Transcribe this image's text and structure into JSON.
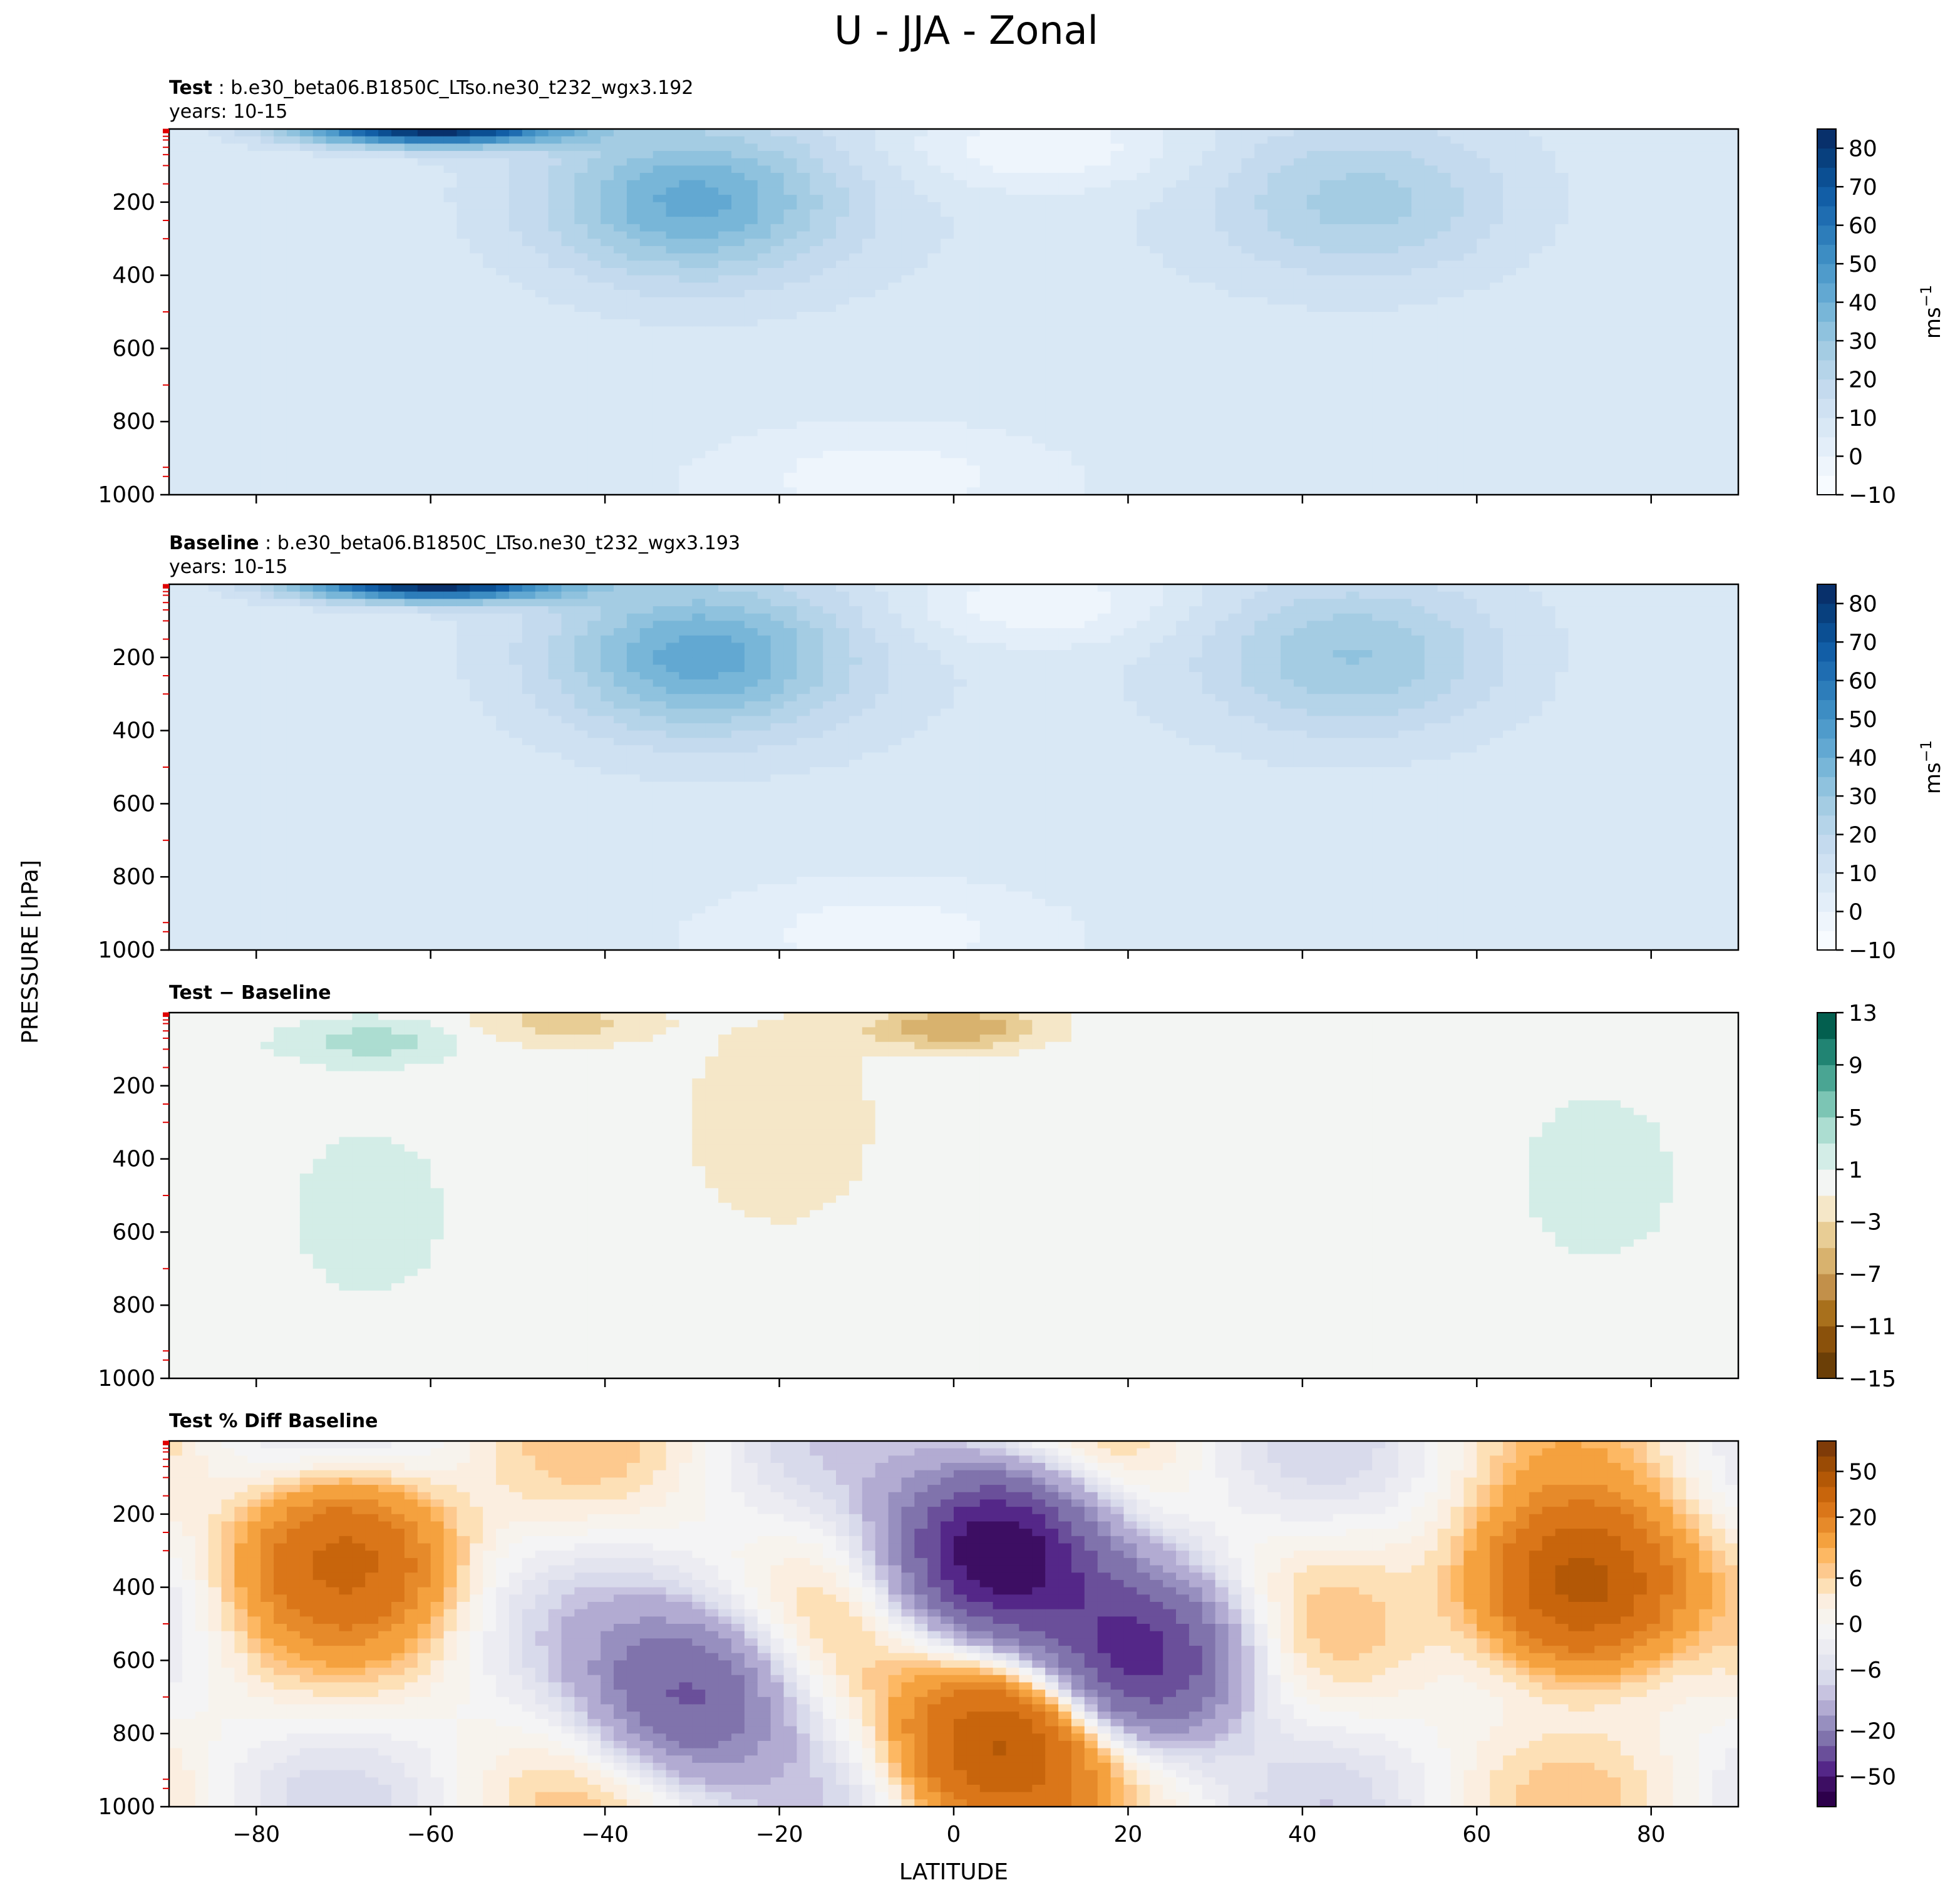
{
  "figure": {
    "title": "U - JJA - Zonal",
    "xlabel": "LATITUDE",
    "ylabel": "PRESSURE [hPa]"
  },
  "chart_data": [
    {
      "type": "heatmap",
      "panel": "test",
      "title_bold": "Test",
      "title_rest": " : b.e30_beta06.B1850C_LTso.ne30_t232_wgx3.192",
      "subtitle": "years: 10-15",
      "xlim": [
        -90,
        90
      ],
      "ylim": [
        1000,
        0
      ],
      "xticks": [
        -80,
        -60,
        -40,
        -20,
        0,
        20,
        40,
        60,
        80
      ],
      "yticks": [
        200,
        400,
        600,
        800,
        1000
      ],
      "ytick_labels": [
        "200",
        "400",
        "600",
        "800",
        "1000"
      ],
      "colorbar": {
        "label": "ms",
        "label_exp": "−1",
        "levels": [
          -10,
          -5,
          0,
          5,
          10,
          15,
          20,
          25,
          30,
          35,
          40,
          45,
          50,
          55,
          60,
          65,
          70,
          75,
          80,
          85
        ],
        "tick_values": [
          -10,
          0,
          10,
          20,
          30,
          40,
          50,
          60,
          70,
          80
        ],
        "tick_labels": [
          "−10",
          "0",
          "10",
          "20",
          "30",
          "40",
          "50",
          "60",
          "70",
          "80"
        ],
        "colors": [
          "#f7fbff",
          "#eef5fc",
          "#e3eef9",
          "#d9e8f5",
          "#cfe1f2",
          "#c4daee",
          "#b5d4e9",
          "#a4cce3",
          "#8fc2de",
          "#78b6d8",
          "#62a8d2",
          "#4f9bcb",
          "#3d8dc3",
          "#2d7dba",
          "#1f6db1",
          "#125ea6",
          "#0b4f93",
          "#08407e",
          "#08306b"
        ]
      },
      "features": [
        {
          "kind": "jet",
          "lat": -30,
          "p": 200,
          "peak": 41
        },
        {
          "kind": "jet",
          "lat": 47,
          "p": 200,
          "peak": 27
        },
        {
          "kind": "strat_jet",
          "lat": -60,
          "p": 0,
          "peak": 85
        },
        {
          "kind": "easterly",
          "lat": 10,
          "p": 50,
          "peak": -8
        },
        {
          "kind": "easterly",
          "lat": -8,
          "p": 950,
          "peak": -4
        }
      ]
    },
    {
      "type": "heatmap",
      "panel": "baseline",
      "title_bold": "Baseline",
      "title_rest": " : b.e30_beta06.B1850C_LTso.ne30_t232_wgx3.193",
      "subtitle": "years: 10-15",
      "xlim": [
        -90,
        90
      ],
      "ylim": [
        1000,
        0
      ],
      "xticks": [
        -80,
        -60,
        -40,
        -20,
        0,
        20,
        40,
        60,
        80
      ],
      "yticks": [
        200,
        400,
        600,
        800,
        1000
      ],
      "ytick_labels": [
        "200",
        "400",
        "600",
        "800",
        "1000"
      ],
      "colorbar": {
        "label": "ms",
        "label_exp": "−1",
        "levels": [
          -10,
          -5,
          0,
          5,
          10,
          15,
          20,
          25,
          30,
          35,
          40,
          45,
          50,
          55,
          60,
          65,
          70,
          75,
          80,
          85
        ],
        "tick_values": [
          -10,
          0,
          10,
          20,
          30,
          40,
          50,
          60,
          70,
          80
        ],
        "tick_labels": [
          "−10",
          "0",
          "10",
          "20",
          "30",
          "40",
          "50",
          "60",
          "70",
          "80"
        ],
        "colors": [
          "#f7fbff",
          "#eef5fc",
          "#e3eef9",
          "#d9e8f5",
          "#cfe1f2",
          "#c4daee",
          "#b5d4e9",
          "#a4cce3",
          "#8fc2de",
          "#78b6d8",
          "#62a8d2",
          "#4f9bcb",
          "#3d8dc3",
          "#2d7dba",
          "#1f6db1",
          "#125ea6",
          "#0b4f93",
          "#08407e",
          "#08306b"
        ]
      },
      "features": [
        {
          "kind": "jet",
          "lat": -29,
          "p": 200,
          "peak": 42
        },
        {
          "kind": "jet",
          "lat": 46,
          "p": 200,
          "peak": 30
        },
        {
          "kind": "strat_jet",
          "lat": -60,
          "p": 0,
          "peak": 85
        },
        {
          "kind": "easterly",
          "lat": 10,
          "p": 50,
          "peak": -8
        },
        {
          "kind": "easterly",
          "lat": -8,
          "p": 950,
          "peak": -4
        }
      ]
    },
    {
      "type": "heatmap",
      "panel": "difference",
      "title_bold": "Test − Baseline",
      "title_rest": "",
      "subtitle": "",
      "xlim": [
        -90,
        90
      ],
      "ylim": [
        1000,
        0
      ],
      "xticks": [
        -80,
        -60,
        -40,
        -20,
        0,
        20,
        40,
        60,
        80
      ],
      "yticks": [
        200,
        400,
        600,
        800,
        1000
      ],
      "ytick_labels": [
        "200",
        "400",
        "600",
        "800",
        "1000"
      ],
      "colorbar": {
        "label": "",
        "label_exp": "",
        "levels": [
          -15,
          -13,
          -11,
          -9,
          -7,
          -5,
          -3,
          -1,
          1,
          3,
          5,
          7,
          9,
          11,
          13
        ],
        "tick_values": [
          -15,
          -11,
          -7,
          -3,
          1,
          5,
          9,
          13
        ],
        "tick_labels": [
          "−15",
          "−11",
          "−7",
          "−3",
          "1",
          "5",
          "9",
          "13"
        ],
        "colors": [
          "#6b3f07",
          "#8a510b",
          "#a8701c",
          "#c2904a",
          "#d8b26e",
          "#e8cd95",
          "#f5e7c8",
          "#f3f5f3",
          "#d3ede7",
          "#acddd1",
          "#7cc5b4",
          "#4aa593",
          "#218473",
          "#035f4f"
        ]
      },
      "features": [
        {
          "kind": "positive",
          "lat": -67,
          "p": 80,
          "peak": 4
        },
        {
          "kind": "positive",
          "lat": -67,
          "p": 550,
          "peak": 2
        },
        {
          "kind": "positive",
          "lat": 74,
          "p": 450,
          "peak": 2
        },
        {
          "kind": "negative",
          "lat": 0,
          "p": 40,
          "peak": -7
        },
        {
          "kind": "negative",
          "lat": -20,
          "p": 300,
          "peak": -3
        },
        {
          "kind": "negative",
          "lat": -45,
          "p": 30,
          "peak": -4
        }
      ]
    },
    {
      "type": "heatmap",
      "panel": "percent_difference",
      "title_bold": "Test % Diff Baseline",
      "title_rest": "",
      "subtitle": "",
      "xlim": [
        -90,
        90
      ],
      "ylim": [
        1000,
        0
      ],
      "xticks": [
        -80,
        -60,
        -40,
        -20,
        0,
        20,
        40,
        60,
        80
      ],
      "xtick_labels": [
        "−80",
        "−60",
        "−40",
        "−20",
        "0",
        "20",
        "40",
        "60",
        "80"
      ],
      "yticks": [
        200,
        400,
        600,
        800,
        1000
      ],
      "ytick_labels": [
        "200",
        "400",
        "600",
        "800",
        "1000"
      ],
      "colorbar": {
        "label": "",
        "label_exp": "",
        "levels": [
          -100,
          -70,
          -50,
          -40,
          -30,
          -20,
          -15,
          -10,
          -8,
          -6,
          -4,
          -2,
          0,
          2,
          4,
          6,
          8,
          10,
          15,
          20,
          30,
          40,
          50,
          70,
          100
        ],
        "tick_values": [
          -50,
          -20,
          -6,
          0,
          6,
          20,
          50
        ],
        "tick_labels": [
          "−50",
          "−20",
          "−6",
          "0",
          "6",
          "20",
          "50"
        ],
        "colors": [
          "#2d004b",
          "#3d0e63",
          "#542788",
          "#6a4f9a",
          "#8073ac",
          "#978fbf",
          "#b2abd2",
          "#c7c3e0",
          "#d8daeb",
          "#e3e4ef",
          "#ececf2",
          "#f4f4f5",
          "#f7f3ed",
          "#fbeee0",
          "#fde0b6",
          "#fdc98e",
          "#fdb863",
          "#f4a13e",
          "#e68a2a",
          "#da7619",
          "#c8650c",
          "#b35806",
          "#9a4b05",
          "#7f3b08"
        ]
      },
      "features": [
        {
          "kind": "positive",
          "lat": -70,
          "p": 300,
          "peak": 30
        },
        {
          "kind": "positive",
          "lat": 72,
          "p": 400,
          "peak": 50
        },
        {
          "kind": "positive",
          "lat": 5,
          "p": 820,
          "peak": 40
        },
        {
          "kind": "negative",
          "lat": 5,
          "p": 300,
          "peak": -60
        },
        {
          "kind": "negative",
          "lat": 22,
          "p": 600,
          "peak": -40
        },
        {
          "kind": "negative",
          "lat": -30,
          "p": 700,
          "peak": -30
        }
      ]
    }
  ]
}
